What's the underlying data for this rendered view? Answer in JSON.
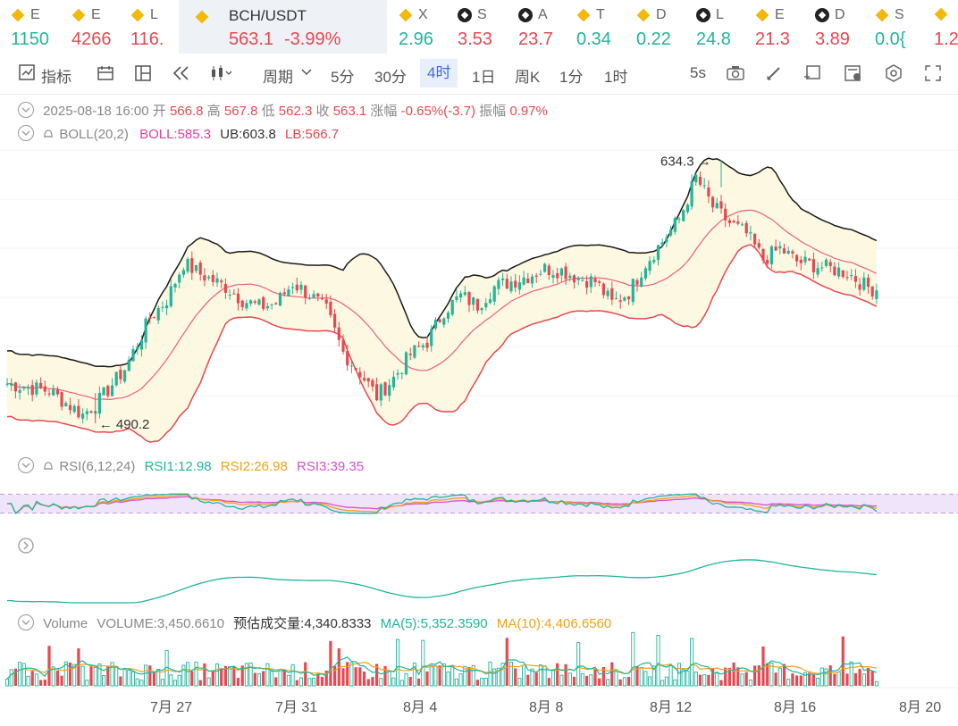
{
  "tickers": [
    {
      "sym": "E",
      "val": "1150",
      "color": "#21b59b",
      "icon": "binance-icon",
      "x": 12,
      "w": 48
    },
    {
      "sym": "E",
      "val": "4266",
      "color": "#e8484f",
      "icon": "binance-icon",
      "x": 80,
      "w": 48
    },
    {
      "sym": "L",
      "val": "116.",
      "color": "#e8484f",
      "icon": "binance-icon",
      "x": 146,
      "w": 48
    },
    {
      "sym": "X",
      "val": "2.96",
      "color": "#21b59b",
      "icon": "binance-icon",
      "x": 446,
      "w": 48
    },
    {
      "sym": "S",
      "val": "3.53",
      "color": "#e8484f",
      "icon": "exchange-icon",
      "x": 512,
      "w": 48
    },
    {
      "sym": "A",
      "val": "23.7",
      "color": "#e8484f",
      "icon": "exchange-icon",
      "x": 580,
      "w": 48
    },
    {
      "sym": "T",
      "val": "0.34",
      "color": "#21b59b",
      "icon": "binance-icon",
      "x": 645,
      "w": 48
    },
    {
      "sym": "D",
      "val": "0.22",
      "color": "#21b59b",
      "icon": "binance-icon",
      "x": 712,
      "w": 48
    },
    {
      "sym": "L",
      "val": "24.8",
      "color": "#21b59b",
      "icon": "exchange-icon",
      "x": 779,
      "w": 48
    },
    {
      "sym": "E",
      "val": "21.3",
      "color": "#e8484f",
      "icon": "binance-icon",
      "x": 845,
      "w": 48
    },
    {
      "sym": "D",
      "val": "3.89",
      "color": "#e8484f",
      "icon": "exchange-icon",
      "x": 912,
      "w": 48
    },
    {
      "sym": "S",
      "val": "0.0{",
      "color": "#21b59b",
      "icon": "binance-icon",
      "x": 979,
      "w": 44
    },
    {
      "sym": "",
      "val": "1.2",
      "color": "#e8484f",
      "icon": "binance-icon",
      "x": 1045,
      "w": 27
    }
  ],
  "active_ticker": {
    "symbol": "BCH/USDT",
    "price": "563.1",
    "change": "-3.99%"
  },
  "toolbar": {
    "indicators": "指标",
    "period": "周期",
    "m5": "5分",
    "m30": "30分",
    "h4": "4时",
    "d1": "1日",
    "wk": "周K",
    "m1": "1分",
    "h1": "1时",
    "sec5": "5s"
  },
  "ohlc": {
    "date": "2025-08-18 16:00",
    "open_label": "开",
    "open": "566.8",
    "high_label": "高",
    "high": "567.8",
    "low_label": "低",
    "low": "562.3",
    "close_label": "收",
    "close": "563.1",
    "chg_label": "涨幅",
    "chg": "-0.65%(-3.7)",
    "amp_label": "振幅",
    "amp": "0.97%"
  },
  "boll": {
    "name": "BOLL(20,2)",
    "boll": "BOLL:585.3",
    "ub": "UB:603.8",
    "lb": "LB:566.7"
  },
  "rsi": {
    "name": "RSI(6,12,24)",
    "rsi1": "RSI1:12.98",
    "rsi2": "RSI2:26.98",
    "rsi3": "RSI3:39.35"
  },
  "volume": {
    "name": "Volume",
    "vol": "VOLUME:3,450.6610",
    "est": "预估成交量:4,340.8333",
    "ma5": "MA(5):5,352.3590",
    "ma10": "MA(10):4,406.6560"
  },
  "chart_data": {
    "type": "candlestick",
    "symbol": "BCH/USDT",
    "interval": "4h",
    "x_ticks": [
      "7月 27",
      "7月 31",
      "8月 4",
      "8月 8",
      "8月 12",
      "8月 16",
      "8月 20"
    ],
    "y_range": [
      480,
      640
    ],
    "max_label": "634.3",
    "min_label": "490.2",
    "close_anchors": [
      [
        0,
        512
      ],
      [
        10,
        508
      ],
      [
        18,
        495
      ],
      [
        22,
        503
      ],
      [
        28,
        520
      ],
      [
        34,
        548
      ],
      [
        38,
        558
      ],
      [
        42,
        578
      ],
      [
        46,
        572
      ],
      [
        52,
        565
      ],
      [
        56,
        558
      ],
      [
        60,
        554
      ],
      [
        64,
        556
      ],
      [
        68,
        567
      ],
      [
        72,
        561
      ],
      [
        76,
        552
      ],
      [
        80,
        529
      ],
      [
        84,
        518
      ],
      [
        88,
        505
      ],
      [
        92,
        515
      ],
      [
        96,
        528
      ],
      [
        100,
        535
      ],
      [
        104,
        552
      ],
      [
        108,
        560
      ],
      [
        112,
        555
      ],
      [
        116,
        565
      ],
      [
        120,
        568
      ],
      [
        124,
        571
      ],
      [
        128,
        575
      ],
      [
        132,
        574
      ],
      [
        136,
        570
      ],
      [
        140,
        568
      ],
      [
        144,
        556
      ],
      [
        148,
        562
      ],
      [
        152,
        578
      ],
      [
        156,
        590
      ],
      [
        160,
        602
      ],
      [
        164,
        625
      ],
      [
        168,
        609
      ],
      [
        172,
        600
      ],
      [
        176,
        594
      ],
      [
        180,
        580
      ],
      [
        184,
        586
      ],
      [
        188,
        579
      ],
      [
        192,
        577
      ],
      [
        196,
        575
      ],
      [
        200,
        573
      ],
      [
        204,
        566
      ],
      [
        207,
        563
      ]
    ],
    "rsi_levels": [
      30,
      70
    ],
    "colors": {
      "up": "#21b59b",
      "down": "#e8484f",
      "boll": "#ee5f7f",
      "ub": "#1a1a1a",
      "lb": "#e8484f",
      "rsi1": "#21b59b",
      "rsi2": "#f0a215",
      "rsi3": "#d84fd0",
      "ma5": "#21b59b",
      "ma10": "#f0a215",
      "band_fill": "#fdf8e1",
      "rsi_fill": "#f0e4fb"
    }
  }
}
